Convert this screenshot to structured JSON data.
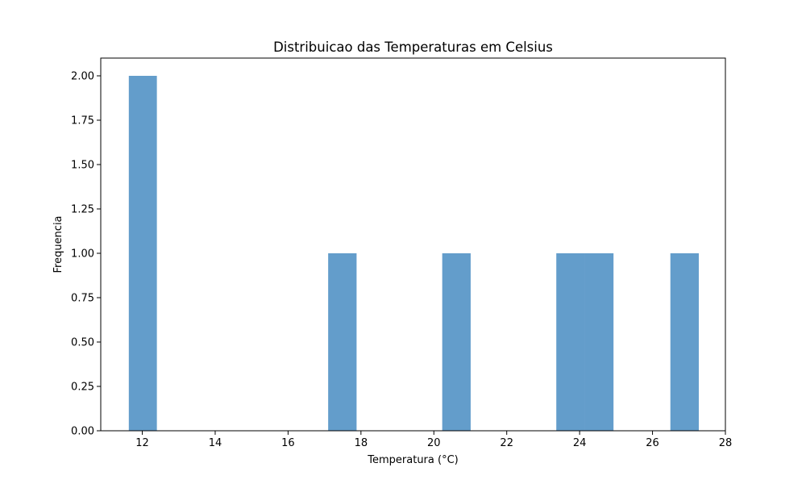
{
  "chart_data": {
    "type": "bar",
    "title": "Distribuicao das Temperaturas em Celsius",
    "xlabel": "Temperatura (°C)",
    "ylabel": "Frequencia",
    "xlim": [
      10.86,
      28.0
    ],
    "ylim": [
      0,
      2.1
    ],
    "x_ticks": [
      12,
      14,
      16,
      18,
      20,
      22,
      24,
      26,
      28
    ],
    "x_tick_labels": [
      "12",
      "14",
      "16",
      "18",
      "20",
      "22",
      "24",
      "26",
      "28"
    ],
    "y_ticks": [
      0,
      0.25,
      0.5,
      0.75,
      1.0,
      1.25,
      1.5,
      1.75,
      2.0
    ],
    "y_tick_labels": [
      "0.00",
      "0.25",
      "0.50",
      "0.75",
      "1.00",
      "1.25",
      "1.50",
      "1.75",
      "2.00"
    ],
    "grid": false,
    "bar_color": "#4c8fc3",
    "bins": [
      {
        "x0": 11.63,
        "x1": 12.4,
        "count": 2
      },
      {
        "x0": 17.1,
        "x1": 17.88,
        "count": 1
      },
      {
        "x0": 20.23,
        "x1": 21.01,
        "count": 1
      },
      {
        "x0": 23.36,
        "x1": 24.14,
        "count": 1
      },
      {
        "x0": 24.14,
        "x1": 24.93,
        "count": 1
      },
      {
        "x0": 26.49,
        "x1": 27.27,
        "count": 1
      }
    ]
  }
}
